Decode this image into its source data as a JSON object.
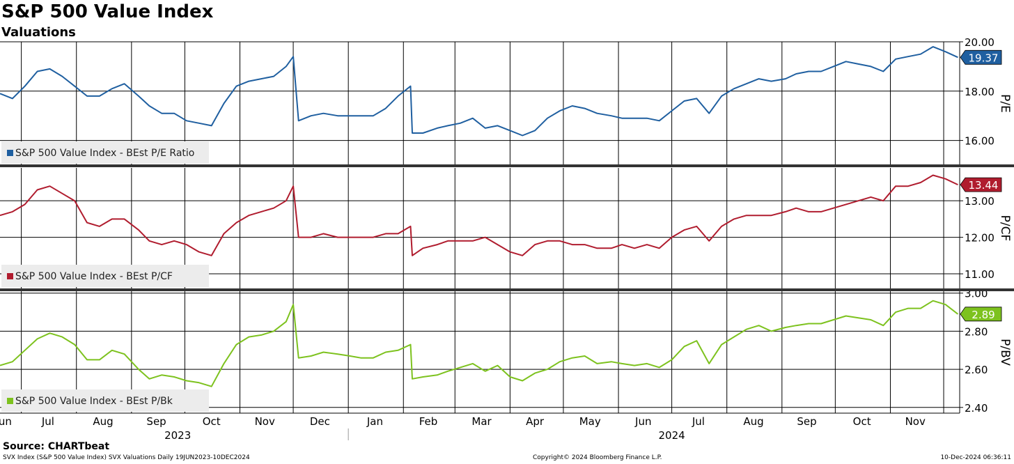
{
  "header": {
    "title": "S&P 500 Value Index",
    "subtitle": "Valuations"
  },
  "footer": {
    "source": "Source: CHARTbeat",
    "left": "SVX Index (S&P 500 Value Index) SVX Valuations  Daily 19JUN2023-10DEC2024",
    "middle": "Copyright© 2024 Bloomberg Finance L.P.",
    "right": "10-Dec-2024 06:36:11"
  },
  "chart_data": [
    {
      "type": "line",
      "ylabel": "P/E",
      "ylim": [
        15.0,
        20.0
      ],
      "yticks": [
        16.0,
        18.0,
        20.0
      ],
      "ytick_labels": [
        "16.00",
        "18.00",
        "20.00"
      ],
      "last_value_label": "19.37",
      "color": "#1f5fa0",
      "legend": "S&P 500 Value Index - BEst P/E Ratio",
      "legend_position": "bottom-left",
      "series": [
        {
          "name": "S&P 500 Value Index - BEst P/E Ratio",
          "x": [
            "2023-06-19",
            "2023-06-26",
            "2023-07-03",
            "2023-07-10",
            "2023-07-17",
            "2023-07-24",
            "2023-07-31",
            "2023-08-07",
            "2023-08-14",
            "2023-08-21",
            "2023-08-28",
            "2023-09-05",
            "2023-09-11",
            "2023-09-18",
            "2023-09-25",
            "2023-10-02",
            "2023-10-09",
            "2023-10-16",
            "2023-10-23",
            "2023-10-30",
            "2023-11-06",
            "2023-11-13",
            "2023-11-20",
            "2023-11-27",
            "2023-12-01",
            "2023-12-04",
            "2023-12-11",
            "2023-12-18",
            "2023-12-26",
            "2024-01-02",
            "2024-01-08",
            "2024-01-15",
            "2024-01-22",
            "2024-01-29",
            "2024-02-05",
            "2024-02-06",
            "2024-02-12",
            "2024-02-20",
            "2024-02-26",
            "2024-03-04",
            "2024-03-11",
            "2024-03-18",
            "2024-03-25",
            "2024-04-01",
            "2024-04-08",
            "2024-04-15",
            "2024-04-22",
            "2024-04-29",
            "2024-05-06",
            "2024-05-13",
            "2024-05-20",
            "2024-05-28",
            "2024-06-03",
            "2024-06-10",
            "2024-06-17",
            "2024-06-24",
            "2024-07-01",
            "2024-07-08",
            "2024-07-15",
            "2024-07-22",
            "2024-07-29",
            "2024-08-05",
            "2024-08-12",
            "2024-08-19",
            "2024-08-26",
            "2024-09-03",
            "2024-09-09",
            "2024-09-16",
            "2024-09-23",
            "2024-09-30",
            "2024-10-07",
            "2024-10-14",
            "2024-10-21",
            "2024-10-28",
            "2024-11-04",
            "2024-11-11",
            "2024-11-18",
            "2024-11-25",
            "2024-12-02",
            "2024-12-09"
          ],
          "values": [
            17.9,
            17.7,
            18.2,
            18.8,
            18.9,
            18.6,
            18.2,
            17.8,
            17.8,
            18.1,
            18.3,
            17.8,
            17.4,
            17.1,
            17.1,
            16.8,
            16.7,
            16.6,
            17.5,
            18.2,
            18.4,
            18.5,
            18.6,
            19.0,
            19.4,
            16.8,
            17.0,
            17.1,
            17.0,
            17.0,
            17.0,
            17.0,
            17.3,
            17.8,
            18.2,
            16.3,
            16.3,
            16.5,
            16.6,
            16.7,
            16.9,
            16.5,
            16.6,
            16.4,
            16.2,
            16.4,
            16.9,
            17.2,
            17.4,
            17.3,
            17.1,
            17.0,
            16.9,
            16.9,
            16.9,
            16.8,
            17.2,
            17.6,
            17.7,
            17.1,
            17.8,
            18.1,
            18.3,
            18.5,
            18.4,
            18.5,
            18.7,
            18.8,
            18.8,
            19.0,
            19.2,
            19.1,
            19.0,
            18.8,
            19.3,
            19.4,
            19.5,
            19.8,
            19.6,
            19.37
          ]
        }
      ]
    },
    {
      "type": "line",
      "ylabel": "P/CF",
      "ylim": [
        10.6,
        13.9
      ],
      "yticks": [
        11.0,
        12.0,
        13.0
      ],
      "ytick_labels": [
        "11.00",
        "12.00",
        "13.00"
      ],
      "last_value_label": "13.44",
      "color": "#b01c2e",
      "legend": "S&P 500 Value Index - BEst P/CF",
      "legend_position": "bottom-left",
      "series": [
        {
          "name": "S&P 500 Value Index - BEst P/CF",
          "x": [
            "2023-06-19",
            "2023-06-26",
            "2023-07-03",
            "2023-07-10",
            "2023-07-17",
            "2023-07-24",
            "2023-07-31",
            "2023-08-07",
            "2023-08-14",
            "2023-08-21",
            "2023-08-28",
            "2023-09-05",
            "2023-09-11",
            "2023-09-18",
            "2023-09-25",
            "2023-10-02",
            "2023-10-09",
            "2023-10-16",
            "2023-10-23",
            "2023-10-30",
            "2023-11-06",
            "2023-11-13",
            "2023-11-20",
            "2023-11-27",
            "2023-12-01",
            "2023-12-04",
            "2023-12-11",
            "2023-12-18",
            "2023-12-26",
            "2024-01-02",
            "2024-01-08",
            "2024-01-15",
            "2024-01-22",
            "2024-01-29",
            "2024-02-05",
            "2024-02-06",
            "2024-02-12",
            "2024-02-20",
            "2024-02-26",
            "2024-03-04",
            "2024-03-11",
            "2024-03-18",
            "2024-03-25",
            "2024-04-01",
            "2024-04-08",
            "2024-04-15",
            "2024-04-22",
            "2024-04-29",
            "2024-05-06",
            "2024-05-13",
            "2024-05-20",
            "2024-05-28",
            "2024-06-03",
            "2024-06-10",
            "2024-06-17",
            "2024-06-24",
            "2024-07-01",
            "2024-07-08",
            "2024-07-15",
            "2024-07-22",
            "2024-07-29",
            "2024-08-05",
            "2024-08-12",
            "2024-08-19",
            "2024-08-26",
            "2024-09-03",
            "2024-09-09",
            "2024-09-16",
            "2024-09-23",
            "2024-09-30",
            "2024-10-07",
            "2024-10-14",
            "2024-10-21",
            "2024-10-28",
            "2024-11-04",
            "2024-11-11",
            "2024-11-18",
            "2024-11-25",
            "2024-12-02",
            "2024-12-09"
          ],
          "values": [
            12.6,
            12.7,
            12.9,
            13.3,
            13.4,
            13.2,
            13.0,
            12.4,
            12.3,
            12.5,
            12.5,
            12.2,
            11.9,
            11.8,
            11.9,
            11.8,
            11.6,
            11.5,
            12.1,
            12.4,
            12.6,
            12.7,
            12.8,
            13.0,
            13.4,
            12.0,
            12.0,
            12.1,
            12.0,
            12.0,
            12.0,
            12.0,
            12.1,
            12.1,
            12.3,
            11.5,
            11.7,
            11.8,
            11.9,
            11.9,
            11.9,
            12.0,
            11.8,
            11.6,
            11.5,
            11.8,
            11.9,
            11.9,
            11.8,
            11.8,
            11.7,
            11.7,
            11.8,
            11.7,
            11.8,
            11.7,
            12.0,
            12.2,
            12.3,
            11.9,
            12.3,
            12.5,
            12.6,
            12.6,
            12.6,
            12.7,
            12.8,
            12.7,
            12.7,
            12.8,
            12.9,
            13.0,
            13.1,
            13.0,
            13.4,
            13.4,
            13.5,
            13.7,
            13.6,
            13.44
          ]
        }
      ]
    },
    {
      "type": "line",
      "ylabel": "P/BV",
      "ylim": [
        2.37,
        3.01
      ],
      "yticks": [
        2.4,
        2.6,
        2.8,
        3.0
      ],
      "ytick_labels": [
        "2.40",
        "2.60",
        "2.80",
        "3.00"
      ],
      "last_value_label": "2.89",
      "color": "#7dc21e",
      "legend": "S&P 500 Value Index - BEst P/Bk",
      "legend_position": "bottom-left",
      "series": [
        {
          "name": "S&P 500 Value Index - BEst P/Bk",
          "x": [
            "2023-06-19",
            "2023-06-26",
            "2023-07-03",
            "2023-07-10",
            "2023-07-17",
            "2023-07-24",
            "2023-07-31",
            "2023-08-07",
            "2023-08-14",
            "2023-08-21",
            "2023-08-28",
            "2023-09-05",
            "2023-09-11",
            "2023-09-18",
            "2023-09-25",
            "2023-10-02",
            "2023-10-09",
            "2023-10-16",
            "2023-10-23",
            "2023-10-30",
            "2023-11-06",
            "2023-11-13",
            "2023-11-20",
            "2023-11-27",
            "2023-12-01",
            "2023-12-04",
            "2023-12-11",
            "2023-12-18",
            "2023-12-26",
            "2024-01-02",
            "2024-01-08",
            "2024-01-15",
            "2024-01-22",
            "2024-01-29",
            "2024-02-05",
            "2024-02-06",
            "2024-02-12",
            "2024-02-20",
            "2024-02-26",
            "2024-03-04",
            "2024-03-11",
            "2024-03-18",
            "2024-03-25",
            "2024-04-01",
            "2024-04-08",
            "2024-04-15",
            "2024-04-22",
            "2024-04-29",
            "2024-05-06",
            "2024-05-13",
            "2024-05-20",
            "2024-05-28",
            "2024-06-03",
            "2024-06-10",
            "2024-06-17",
            "2024-06-24",
            "2024-07-01",
            "2024-07-08",
            "2024-07-15",
            "2024-07-22",
            "2024-07-29",
            "2024-08-05",
            "2024-08-12",
            "2024-08-19",
            "2024-08-26",
            "2024-09-03",
            "2024-09-09",
            "2024-09-16",
            "2024-09-23",
            "2024-09-30",
            "2024-10-07",
            "2024-10-14",
            "2024-10-21",
            "2024-10-28",
            "2024-11-04",
            "2024-11-11",
            "2024-11-18",
            "2024-11-25",
            "2024-12-02",
            "2024-12-09"
          ],
          "values": [
            2.62,
            2.64,
            2.7,
            2.76,
            2.79,
            2.77,
            2.73,
            2.65,
            2.65,
            2.7,
            2.68,
            2.6,
            2.55,
            2.57,
            2.56,
            2.54,
            2.53,
            2.51,
            2.63,
            2.73,
            2.77,
            2.78,
            2.8,
            2.85,
            2.94,
            2.66,
            2.67,
            2.69,
            2.68,
            2.67,
            2.66,
            2.66,
            2.69,
            2.7,
            2.73,
            2.55,
            2.56,
            2.57,
            2.59,
            2.61,
            2.63,
            2.59,
            2.62,
            2.56,
            2.54,
            2.58,
            2.6,
            2.64,
            2.66,
            2.67,
            2.63,
            2.64,
            2.63,
            2.62,
            2.63,
            2.61,
            2.65,
            2.72,
            2.75,
            2.63,
            2.73,
            2.77,
            2.81,
            2.83,
            2.8,
            2.82,
            2.83,
            2.84,
            2.84,
            2.86,
            2.88,
            2.87,
            2.86,
            2.83,
            2.9,
            2.92,
            2.92,
            2.96,
            2.94,
            2.89
          ]
        }
      ]
    }
  ],
  "x_axis": {
    "start": "2023-06-19",
    "end": "2024-12-10",
    "months": [
      {
        "label": "Jun",
        "date": "2023-06-21"
      },
      {
        "label": "Jul",
        "date": "2023-07-16"
      },
      {
        "label": "Aug",
        "date": "2023-08-16"
      },
      {
        "label": "Sep",
        "date": "2023-09-15"
      },
      {
        "label": "Oct",
        "date": "2023-10-16"
      },
      {
        "label": "Nov",
        "date": "2023-11-15"
      },
      {
        "label": "Dec",
        "date": "2023-12-16"
      },
      {
        "label": "Jan",
        "date": "2024-01-16"
      },
      {
        "label": "Feb",
        "date": "2024-02-15"
      },
      {
        "label": "Mar",
        "date": "2024-03-16"
      },
      {
        "label": "Apr",
        "date": "2024-04-15"
      },
      {
        "label": "May",
        "date": "2024-05-16"
      },
      {
        "label": "Jun",
        "date": "2024-06-15"
      },
      {
        "label": "Jul",
        "date": "2024-07-16"
      },
      {
        "label": "Aug",
        "date": "2024-08-16"
      },
      {
        "label": "Sep",
        "date": "2024-09-15"
      },
      {
        "label": "Oct",
        "date": "2024-10-16"
      },
      {
        "label": "Nov",
        "date": "2024-11-15"
      }
    ],
    "gridlines": [
      "2023-07-01",
      "2023-08-01",
      "2023-09-01",
      "2023-10-01",
      "2023-11-01",
      "2023-12-01",
      "2024-01-01",
      "2024-02-01",
      "2024-03-01",
      "2024-04-01",
      "2024-05-01",
      "2024-06-01",
      "2024-07-01",
      "2024-08-01",
      "2024-09-01",
      "2024-10-01",
      "2024-11-01",
      "2024-12-01"
    ],
    "years": [
      {
        "label": "2023",
        "date": "2023-09-27"
      },
      {
        "label": "2024",
        "date": "2024-07-01"
      }
    ],
    "year_divider": "2024-01-01"
  }
}
